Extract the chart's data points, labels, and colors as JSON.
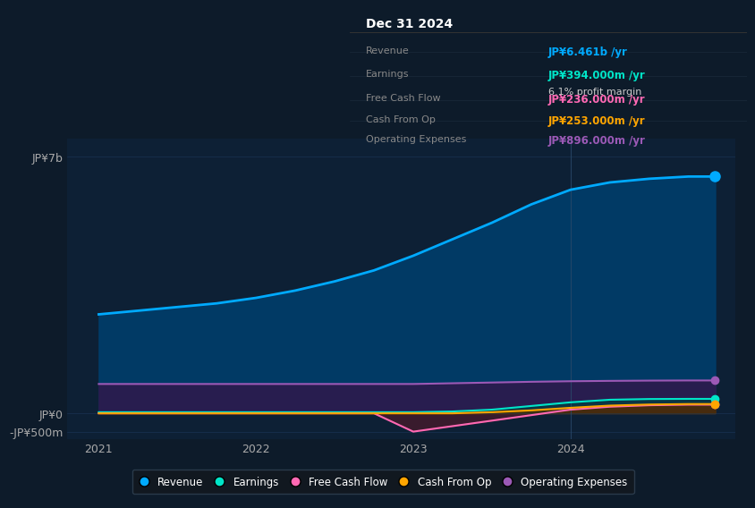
{
  "bg_color": "#0d1b2a",
  "plot_bg_color": "#0d2035",
  "title": "Dec 31 2024",
  "years": [
    2021,
    2021.25,
    2021.5,
    2021.75,
    2022,
    2022.25,
    2022.5,
    2022.75,
    2023,
    2023.25,
    2023.5,
    2023.75,
    2024,
    2024.25,
    2024.5,
    2024.75,
    2024.92
  ],
  "revenue": [
    2700,
    2800,
    2900,
    3000,
    3150,
    3350,
    3600,
    3900,
    4300,
    4750,
    5200,
    5700,
    6100,
    6300,
    6400,
    6461,
    6461
  ],
  "earnings": [
    30,
    30,
    30,
    30,
    30,
    30,
    30,
    30,
    30,
    50,
    100,
    200,
    300,
    370,
    390,
    394,
    394
  ],
  "free_cash_flow": [
    0,
    0,
    0,
    0,
    0,
    0,
    0,
    0,
    -500,
    -350,
    -200,
    -50,
    100,
    180,
    220,
    236,
    236
  ],
  "cash_from_op": [
    0,
    0,
    0,
    0,
    0,
    0,
    0,
    0,
    0,
    0,
    30,
    80,
    150,
    210,
    240,
    253,
    253
  ],
  "operating_expenses": [
    800,
    800,
    800,
    800,
    800,
    800,
    800,
    800,
    800,
    820,
    840,
    860,
    875,
    885,
    892,
    896,
    896
  ],
  "ylim": [
    -700,
    7500
  ],
  "yticks": [
    -500,
    0,
    7000
  ],
  "ytick_labels": [
    "-JP¥500m",
    "JP¥0",
    "JP¥7b"
  ],
  "xticks": [
    2021,
    2022,
    2023,
    2024
  ],
  "legend_items": [
    {
      "label": "Revenue",
      "color": "#00aaff"
    },
    {
      "label": "Earnings",
      "color": "#00e5c8"
    },
    {
      "label": "Free Cash Flow",
      "color": "#ff69b4"
    },
    {
      "label": "Cash From Op",
      "color": "#ffa500"
    },
    {
      "label": "Operating Expenses",
      "color": "#9b59b6"
    }
  ],
  "grid_color": "#1e3a5f",
  "line_colors": {
    "revenue": "#00aaff",
    "earnings": "#00e5c8",
    "free_cash_flow": "#ff69b4",
    "cash_from_op": "#ffa500",
    "operating_expenses": "#9b59b6"
  },
  "fill_colors": {
    "revenue": "#003d6b",
    "earnings": "#004040",
    "free_cash_flow": "#4d1a2a",
    "cash_from_op": "#4d3000",
    "operating_expenses": "#2d1a4d"
  },
  "vline_x": 2024.0,
  "vline_color": "#2a4a6a",
  "table_rows": [
    {
      "label": "Revenue",
      "value": "JP¥6.461b /yr",
      "color": "#00aaff",
      "sub": null,
      "sub_color": null
    },
    {
      "label": "Earnings",
      "value": "JP¥394.000m /yr",
      "color": "#00e5c8",
      "sub": "6.1% profit margin",
      "sub_color": "#cccccc"
    },
    {
      "label": "Free Cash Flow",
      "value": "JP¥236.000m /yr",
      "color": "#ff69b4",
      "sub": null,
      "sub_color": null
    },
    {
      "label": "Cash From Op",
      "value": "JP¥253.000m /yr",
      "color": "#ffa500",
      "sub": null,
      "sub_color": null
    },
    {
      "label": "Operating Expenses",
      "value": "JP¥896.000m /yr",
      "color": "#9b59b6",
      "sub": null,
      "sub_color": null
    }
  ]
}
